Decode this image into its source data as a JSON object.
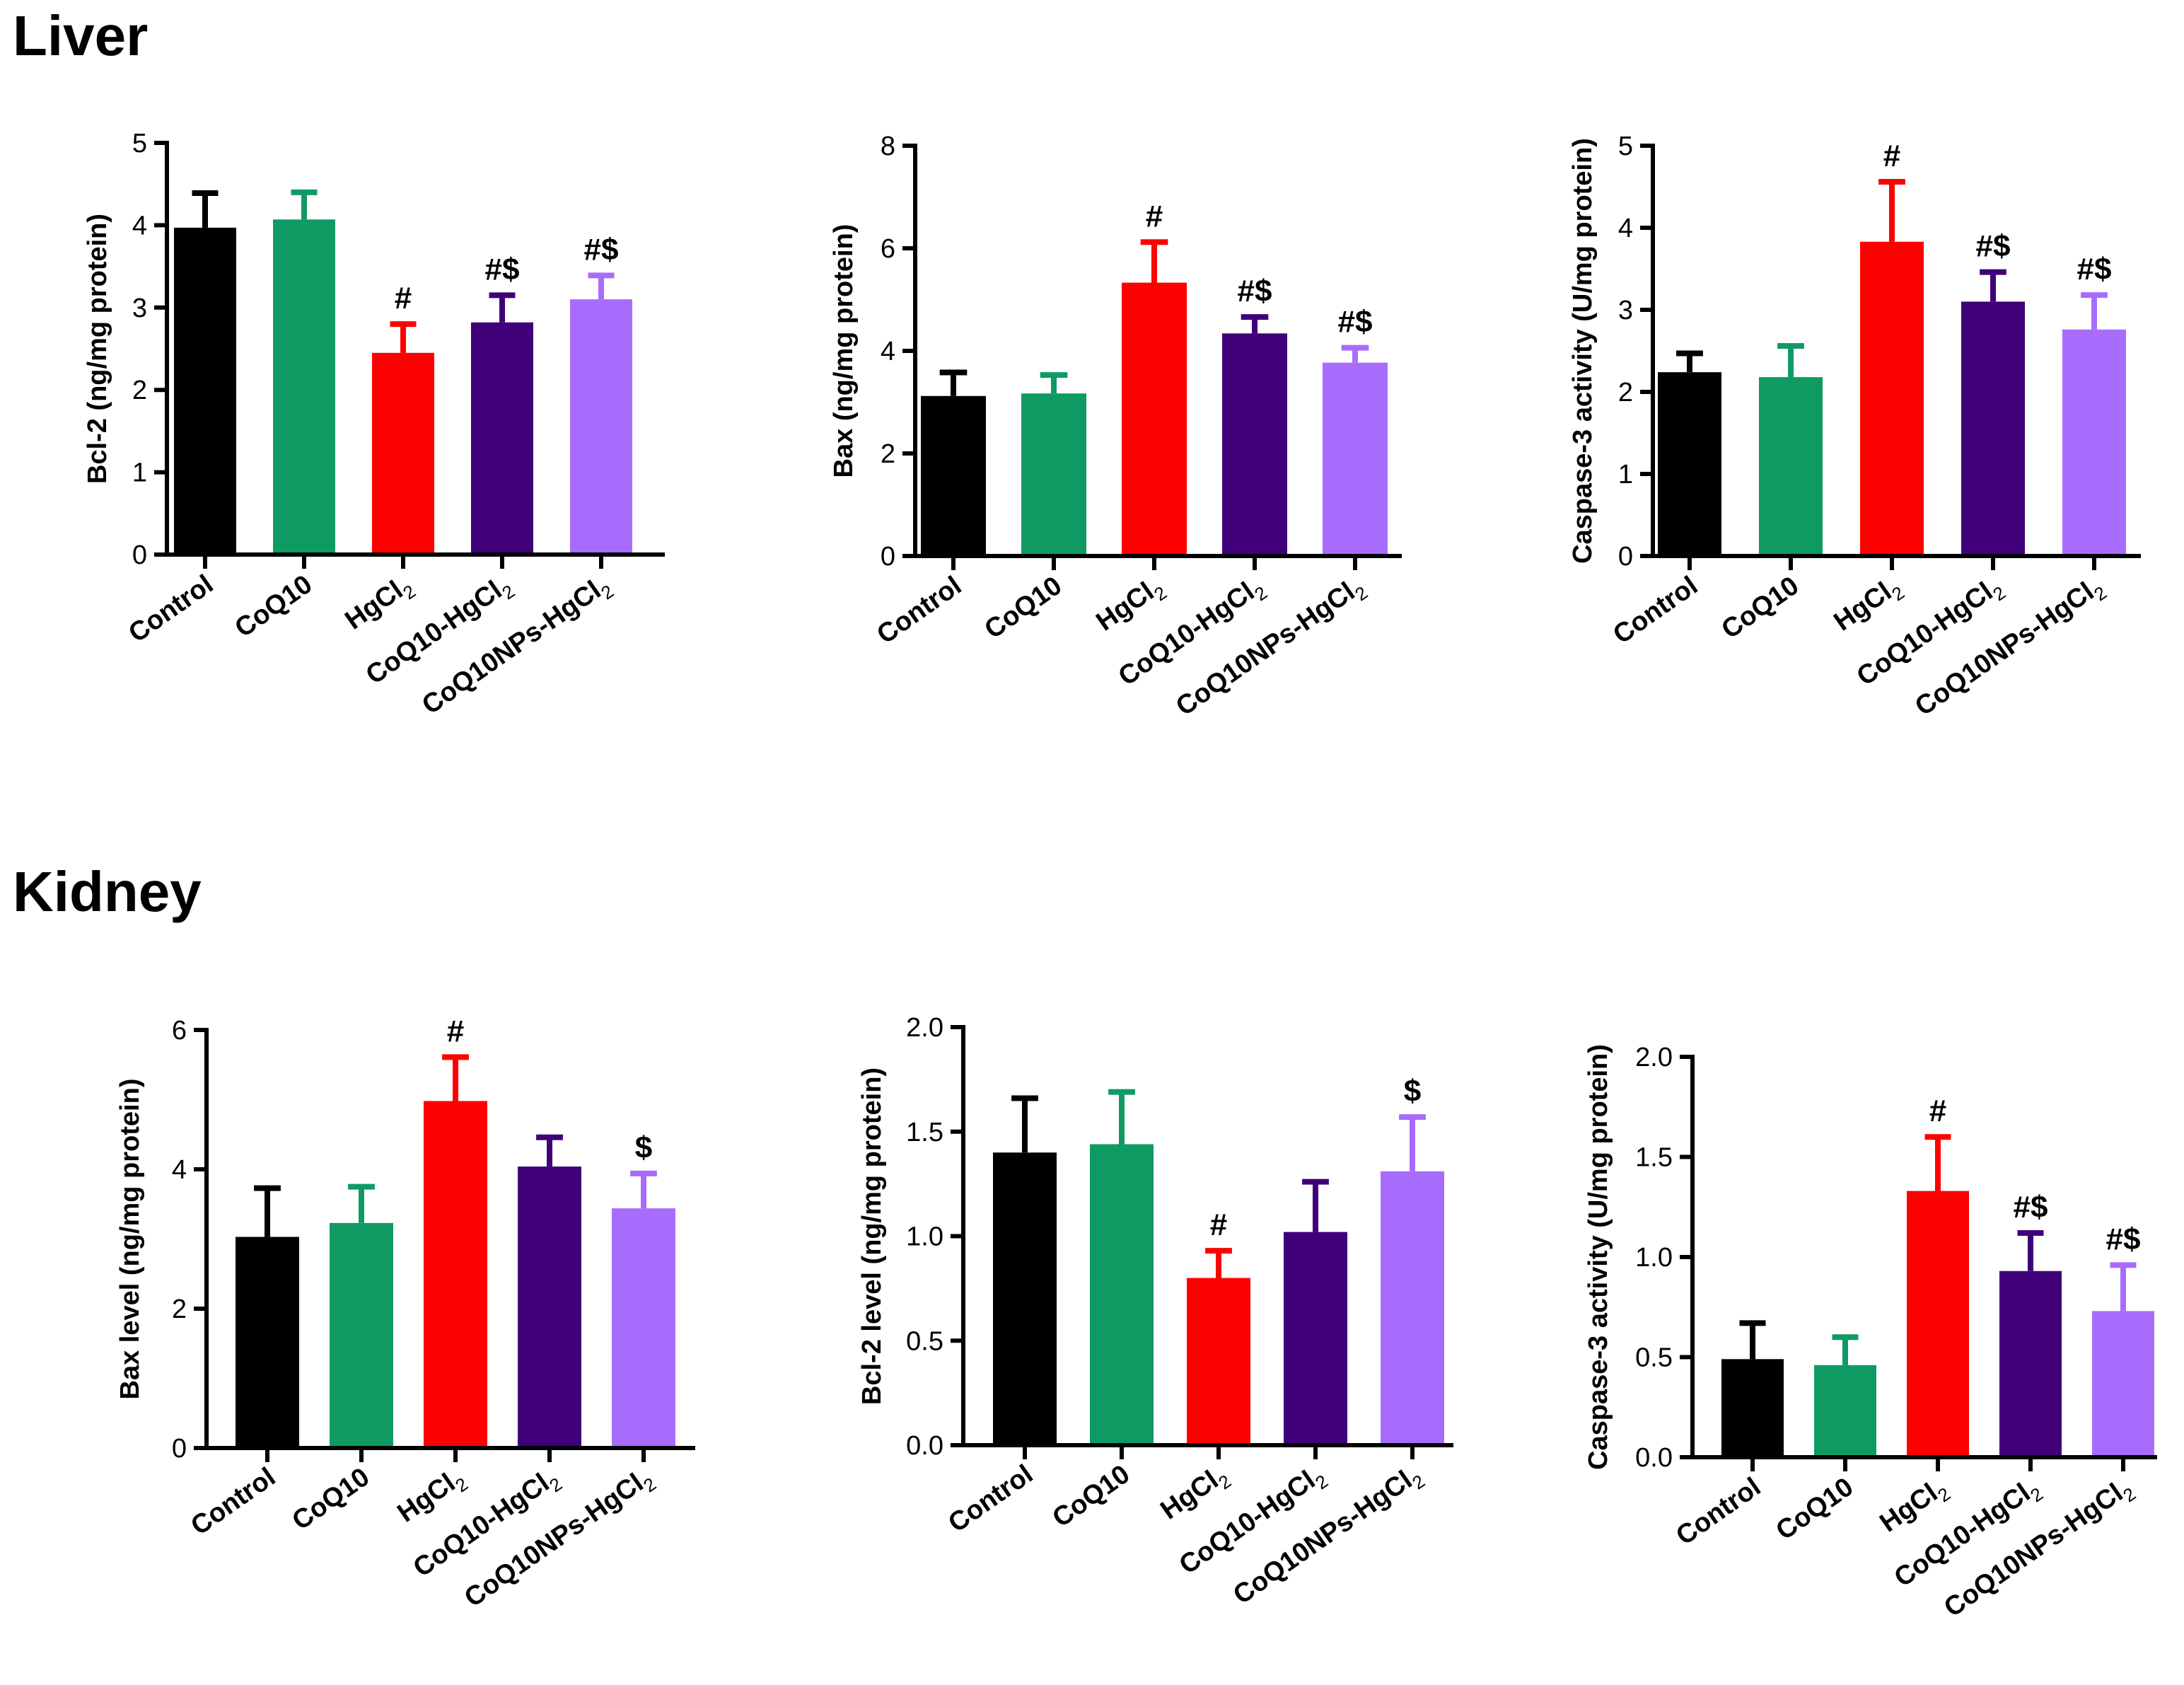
{
  "sections": [
    {
      "title": "Liver"
    },
    {
      "title": "Kidney"
    }
  ],
  "colors": {
    "Control": "#000000",
    "CoQ10": "#0f9a64",
    "HgCl2": "#fd0000",
    "CoQ10-HgCl2": "#3f0079",
    "CoQ10NPs-HgCl2": "#a86cfc"
  },
  "chart_data": [
    {
      "type": "bar",
      "section": "Liver",
      "ylabel": "Bcl-2 (ng/mg protein)",
      "ylim": [
        0,
        5
      ],
      "yticks": [
        "0",
        "1",
        "2",
        "3",
        "4",
        "5"
      ],
      "categories": [
        "Control",
        "CoQ10",
        "HgCl2",
        "CoQ10-HgCl2",
        "CoQ10NPs-HgCl2"
      ],
      "values": [
        3.97,
        4.07,
        2.45,
        2.82,
        3.1
      ],
      "errors": [
        0.42,
        0.33,
        0.35,
        0.33,
        0.29
      ],
      "annotations": [
        "",
        "",
        "#",
        "#$",
        "#$"
      ]
    },
    {
      "type": "bar",
      "section": "Liver",
      "ylabel": "Bax (ng/mg protein)",
      "ylim": [
        0,
        8
      ],
      "yticks": [
        "0",
        "2",
        "4",
        "6",
        "8"
      ],
      "categories": [
        "Control",
        "CoQ10",
        "HgCl2",
        "CoQ10-HgCl2",
        "CoQ10NPs-HgCl2"
      ],
      "values": [
        3.12,
        3.17,
        5.33,
        4.34,
        3.77
      ],
      "errors": [
        0.46,
        0.36,
        0.79,
        0.32,
        0.29
      ],
      "annotations": [
        "",
        "",
        "#",
        "#$",
        "#$"
      ]
    },
    {
      "type": "bar",
      "section": "Liver",
      "ylabel": "Caspase-3 activity (U/mg protein)",
      "ylim": [
        0,
        5
      ],
      "yticks": [
        "0",
        "1",
        "2",
        "3",
        "4",
        "5"
      ],
      "categories": [
        "Control",
        "CoQ10",
        "HgCl2",
        "CoQ10-HgCl2",
        "CoQ10NPs-HgCl2"
      ],
      "values": [
        2.24,
        2.18,
        3.83,
        3.1,
        2.76
      ],
      "errors": [
        0.23,
        0.38,
        0.73,
        0.36,
        0.42
      ],
      "annotations": [
        "",
        "",
        "#",
        "#$",
        "#$"
      ]
    },
    {
      "type": "bar",
      "section": "Kidney",
      "ylabel": "Bax level (ng/mg protein)",
      "ylim": [
        0,
        6
      ],
      "yticks": [
        "0",
        "2",
        "4",
        "6"
      ],
      "categories": [
        "Control",
        "CoQ10",
        "HgCl2",
        "CoQ10-HgCl2",
        "CoQ10NPs-HgCl2"
      ],
      "values": [
        3.03,
        3.23,
        4.98,
        4.04,
        3.44
      ],
      "errors": [
        0.7,
        0.52,
        0.63,
        0.42,
        0.5
      ],
      "annotations": [
        "",
        "",
        "#",
        "",
        "$"
      ]
    },
    {
      "type": "bar",
      "section": "Kidney",
      "ylabel": "Bcl-2 level (ng/mg protein)",
      "ylim": [
        0,
        2.0
      ],
      "yticks": [
        "0.0",
        "0.5",
        "1.0",
        "1.5",
        "2.0"
      ],
      "categories": [
        "Control",
        "CoQ10",
        "HgCl2",
        "CoQ10-HgCl2",
        "CoQ10NPs-HgCl2"
      ],
      "values": [
        1.4,
        1.44,
        0.8,
        1.02,
        1.31
      ],
      "errors": [
        0.26,
        0.25,
        0.13,
        0.24,
        0.26
      ],
      "annotations": [
        "",
        "",
        "#",
        "",
        "$"
      ]
    },
    {
      "type": "bar",
      "section": "Kidney",
      "ylabel": "Caspase-3 activity (U/mg protein)",
      "ylim": [
        0,
        2.0
      ],
      "yticks": [
        "0.0",
        "0.5",
        "1.0",
        "1.5",
        "2.0"
      ],
      "categories": [
        "Control",
        "CoQ10",
        "HgCl2",
        "CoQ10-HgCl2",
        "CoQ10NPs-HgCl2"
      ],
      "values": [
        0.49,
        0.46,
        1.33,
        0.93,
        0.73
      ],
      "errors": [
        0.18,
        0.14,
        0.27,
        0.19,
        0.23
      ],
      "annotations": [
        "",
        "",
        "#",
        "#$",
        "#$"
      ]
    }
  ]
}
